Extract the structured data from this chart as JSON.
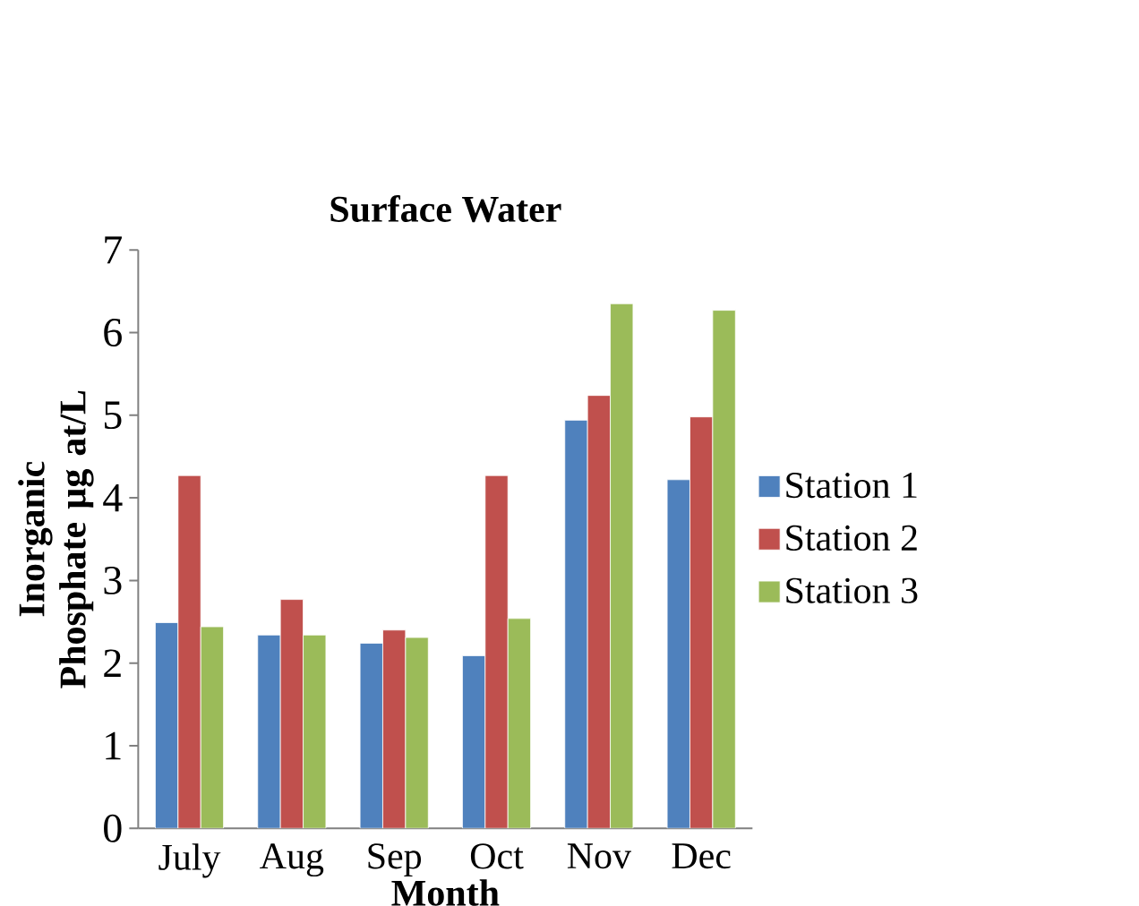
{
  "chart_data": {
    "type": "bar",
    "title": "Surface Water",
    "xlabel": "Month",
    "ylabel": "Inorganic Phosphate µg at/L",
    "categories": [
      "July",
      "Aug",
      "Sep",
      "Oct",
      "Nov",
      "Dec"
    ],
    "series": [
      {
        "name": "Station 1",
        "color": "#4f81bd",
        "values": [
          2.49,
          2.34,
          2.24,
          2.09,
          4.94,
          4.22
        ]
      },
      {
        "name": "Station 2",
        "color": "#c0504d",
        "values": [
          4.27,
          2.77,
          2.4,
          4.27,
          5.24,
          4.98
        ]
      },
      {
        "name": "Station 3",
        "color": "#9bbb59",
        "values": [
          2.44,
          2.34,
          2.31,
          2.54,
          6.35,
          6.27
        ]
      }
    ],
    "ylim": [
      0,
      7
    ],
    "yticks": [
      0,
      1,
      2,
      3,
      4,
      5,
      6,
      7
    ],
    "grid": false,
    "legend": "right"
  }
}
